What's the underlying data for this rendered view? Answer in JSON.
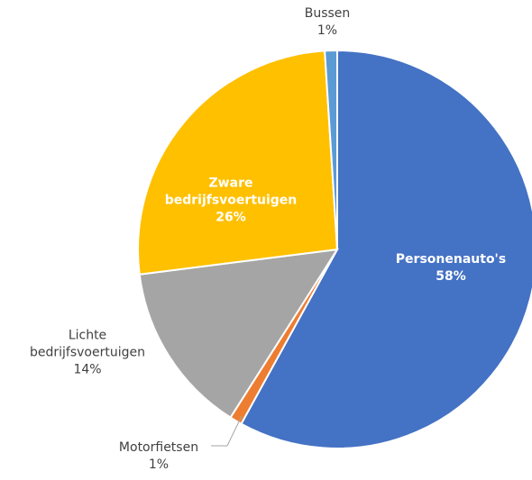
{
  "chart_data": {
    "type": "pie",
    "categories": [
      "Personenauto's",
      "Motorfietsen",
      "Lichte bedrijfsvoertuigen",
      "Zware bedrijfsvoertuigen",
      "Bussen"
    ],
    "values": [
      58,
      1,
      14,
      26,
      1
    ],
    "value_labels": [
      "58%",
      "1%",
      "14%",
      "26%",
      "1%"
    ],
    "colors": [
      "#4472c4",
      "#ed7d31",
      "#a5a5a5",
      "#ffc000",
      "#5b9bd5"
    ]
  }
}
